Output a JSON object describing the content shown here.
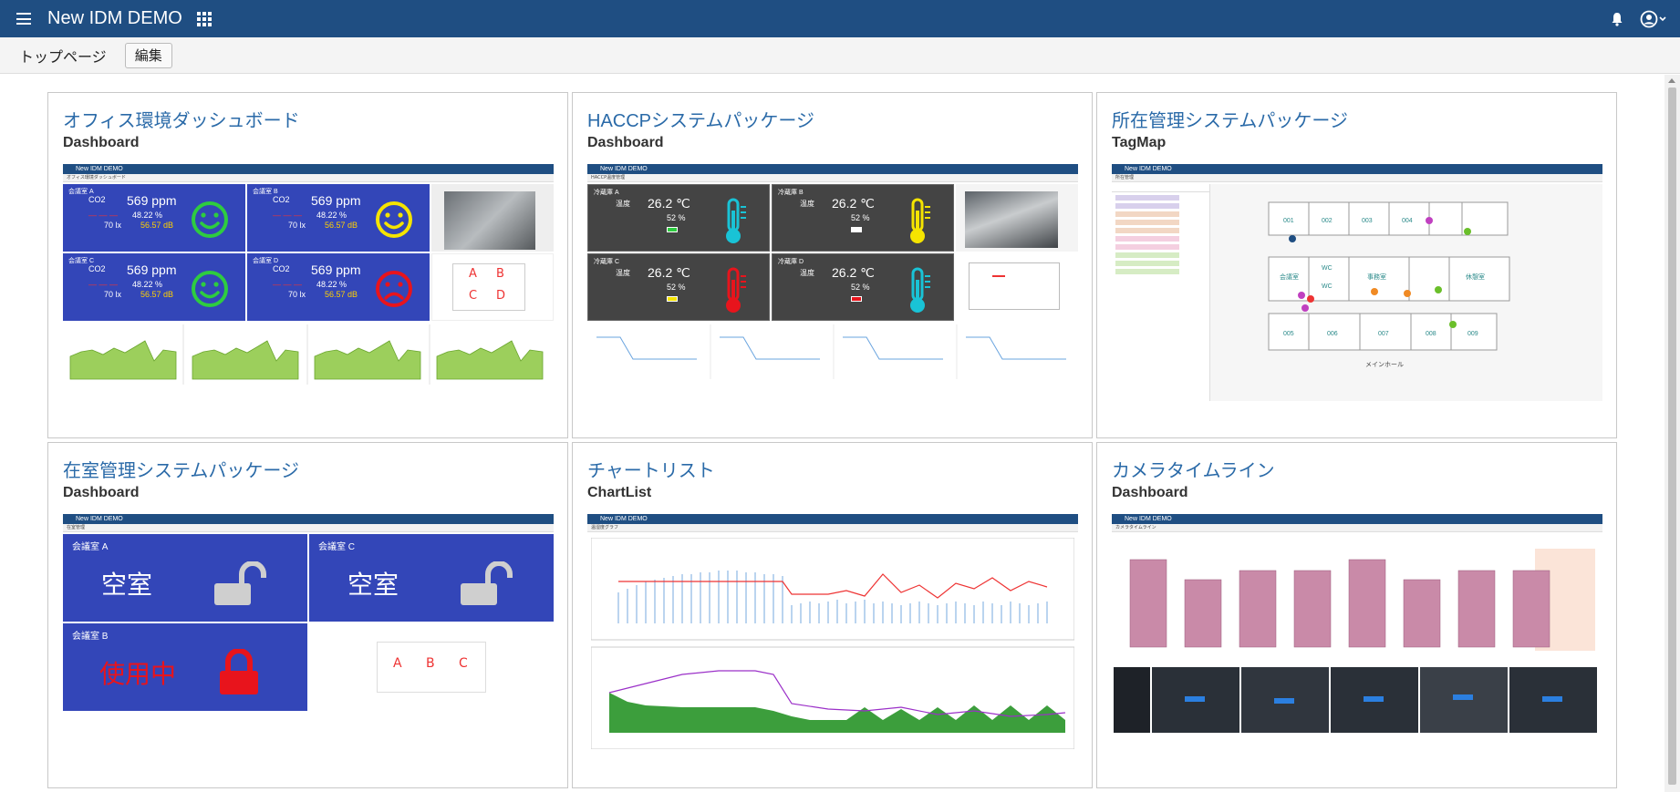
{
  "header": {
    "title": "New IDM DEMO"
  },
  "nav": {
    "page": "トップページ",
    "edit": "編集"
  },
  "cards": [
    {
      "title": "オフィス環境ダッシュボード",
      "type": "Dashboard"
    },
    {
      "title": "HACCPシステムパッケージ",
      "type": "Dashboard"
    },
    {
      "title": "所在管理システムパッケージ",
      "type": "TagMap"
    },
    {
      "title": "在室管理システムパッケージ",
      "type": "Dashboard"
    },
    {
      "title": "チャートリスト",
      "type": "ChartList"
    },
    {
      "title": "カメラタイムライン",
      "type": "Dashboard"
    }
  ],
  "thumb_office": {
    "app": "New IDM DEMO",
    "rooms": [
      {
        "name": "会議室 A",
        "co2_label": "CO2",
        "co2": "569 ppm",
        "humidity": "48.22 %",
        "lux": "70 lx",
        "db": "56.57 dB",
        "mood": "happy",
        "face_color": "#2ecc40"
      },
      {
        "name": "会議室 B",
        "co2_label": "CO2",
        "co2": "569 ppm",
        "humidity": "48.22 %",
        "lux": "70 lx",
        "db": "56.57 dB",
        "mood": "happy",
        "face_color": "#f5e400"
      },
      {
        "name": "会議室 C",
        "co2_label": "CO2",
        "co2": "569 ppm",
        "humidity": "48.22 %",
        "lux": "70 lx",
        "db": "56.57 dB",
        "mood": "happy",
        "face_color": "#2ecc40"
      },
      {
        "name": "会議室 D",
        "co2_label": "CO2",
        "co2": "569 ppm",
        "humidity": "48.22 %",
        "lux": "70 lx",
        "db": "56.57 dB",
        "mood": "sad",
        "face_color": "#e8141c"
      }
    ],
    "map_letters": [
      "A",
      "B",
      "C",
      "D"
    ]
  },
  "thumb_haccp": {
    "fridges": [
      {
        "name": "冷蔵庫 A",
        "temp_label": "温度",
        "temp": "26.2 ℃",
        "humidity": "52 %",
        "therm_color": "#19c3d6"
      },
      {
        "name": "冷蔵庫 B",
        "temp_label": "温度",
        "temp": "26.2 ℃",
        "humidity": "52 %",
        "therm_color": "#f5e400"
      },
      {
        "name": "冷蔵庫 C",
        "temp_label": "温度",
        "temp": "26.2 ℃",
        "humidity": "52 %",
        "therm_color": "#e8141c"
      },
      {
        "name": "冷蔵庫 D",
        "temp_label": "温度",
        "temp": "26.2 ℃",
        "humidity": "52 %",
        "therm_color": "#19c3d6"
      }
    ]
  },
  "thumb_tagmap": {
    "rooms": [
      "001",
      "002",
      "003",
      "004",
      "005",
      "006",
      "007",
      "008",
      "009",
      "WC",
      "WC",
      "事務室",
      "会議室",
      "休憩室"
    ],
    "hall_label": "メインホール"
  },
  "thumb_presence": {
    "rooms": [
      {
        "name": "会議室 A",
        "status": "空室",
        "locked": false
      },
      {
        "name": "会議室 C",
        "status": "空室",
        "locked": false
      },
      {
        "name": "会議室 B",
        "status": "使用中",
        "locked": true
      }
    ],
    "map_letters": [
      "A",
      "B",
      "C"
    ]
  },
  "colors": {
    "header": "#1f4e82",
    "link": "#2a6aa8",
    "room_blue": "#3346b8"
  }
}
